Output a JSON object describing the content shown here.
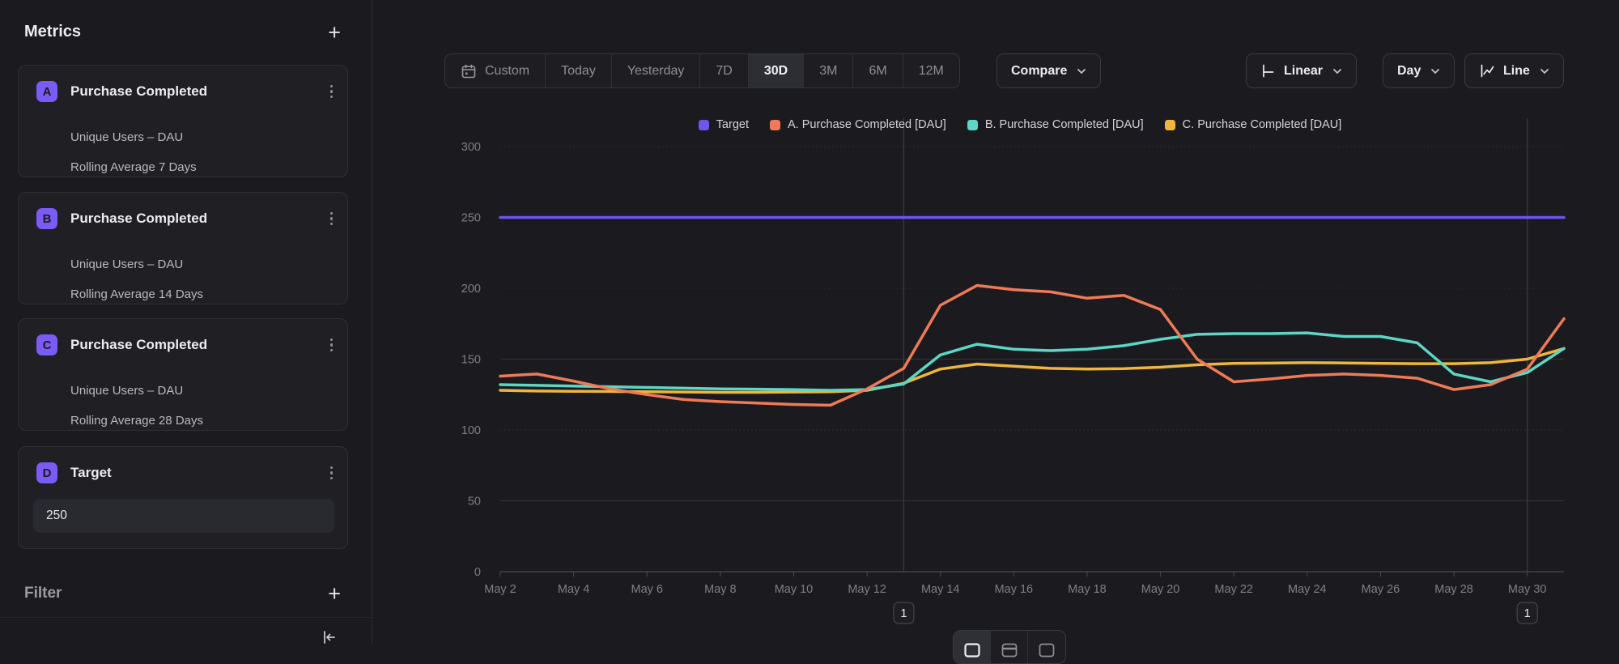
{
  "sidebar": {
    "title": "Metrics",
    "add_metric_label": "+",
    "metrics": [
      {
        "badge": "A",
        "title": "Purchase Completed",
        "row1": "Unique Users – DAU",
        "row2": "Rolling Average 7 Days"
      },
      {
        "badge": "B",
        "title": "Purchase Completed",
        "row1": "Unique Users – DAU",
        "row2": "Rolling Average 14 Days"
      },
      {
        "badge": "C",
        "title": "Purchase Completed",
        "row1": "Unique Users – DAU",
        "row2": "Rolling Average 28 Days"
      }
    ],
    "target": {
      "badge": "D",
      "title": "Target",
      "value": "250"
    },
    "filter": {
      "label": "Filter",
      "add_label": "+"
    }
  },
  "toolbar": {
    "ranges": [
      "Custom",
      "Today",
      "Yesterday",
      "7D",
      "30D",
      "3M",
      "6M",
      "12M"
    ],
    "selected_range": "30D",
    "compare_label": "Compare",
    "scale_label": "Linear",
    "interval_label": "Day",
    "chart_type_label": "Line"
  },
  "colors": {
    "badge_purple": "#7a5cf5",
    "background": "#1b1b1f",
    "grid": "#303036",
    "axis": "#55555c"
  },
  "chart_data": {
    "type": "line",
    "title": "",
    "xlabel": "",
    "ylabel": "",
    "ylim": [
      0,
      300
    ],
    "y_ticks": [
      0,
      50,
      100,
      150,
      200,
      250,
      300
    ],
    "x_label_every": 2,
    "grid": true,
    "legend_position": "top",
    "categories": [
      "May 2",
      "May 3",
      "May 4",
      "May 5",
      "May 6",
      "May 7",
      "May 8",
      "May 9",
      "May 10",
      "May 11",
      "May 12",
      "May 13",
      "May 14",
      "May 15",
      "May 16",
      "May 17",
      "May 18",
      "May 19",
      "May 20",
      "May 21",
      "May 22",
      "May 23",
      "May 24",
      "May 25",
      "May 26",
      "May 27",
      "May 28",
      "May 29",
      "May 30",
      "May 31"
    ],
    "series": [
      {
        "name": "Target",
        "color": "#6f54ee",
        "constant": 250
      },
      {
        "name": "A. Purchase Completed [DAU]",
        "color": "#ef7a58",
        "values": [
          138,
          139.5,
          134.5,
          129,
          125,
          121.5,
          120,
          119,
          118,
          117.5,
          129,
          143.5,
          188,
          202,
          199,
          197.5,
          193,
          195,
          185,
          150,
          134,
          136,
          138.5,
          139.5,
          138.5,
          136.5,
          128.5,
          132,
          143,
          178.5
        ]
      },
      {
        "name": "B. Purchase Completed [DAU]",
        "color": "#5cd6c5",
        "values": [
          132,
          131.5,
          131,
          130.5,
          130,
          129.5,
          129,
          128.8,
          128.5,
          128,
          128.5,
          132.5,
          153,
          160.5,
          157,
          156,
          157,
          159.5,
          164,
          167.5,
          168,
          168,
          168.5,
          166,
          166,
          161.5,
          139.5,
          134,
          140.5,
          157.5
        ]
      },
      {
        "name": "C. Purchase Completed [DAU]",
        "color": "#eeb63c",
        "values": [
          128,
          127.5,
          127.3,
          127.2,
          127,
          126.8,
          126.6,
          126.6,
          126.8,
          127,
          128,
          133,
          143,
          146.5,
          145,
          143.5,
          143,
          143.3,
          144.3,
          146,
          147,
          147.2,
          147.5,
          147.3,
          147,
          146.8,
          146.8,
          147.5,
          150,
          157.5
        ]
      }
    ],
    "annotations": [
      {
        "category": "May 13",
        "label": "1"
      },
      {
        "category": "May 30",
        "label": "1"
      }
    ]
  }
}
